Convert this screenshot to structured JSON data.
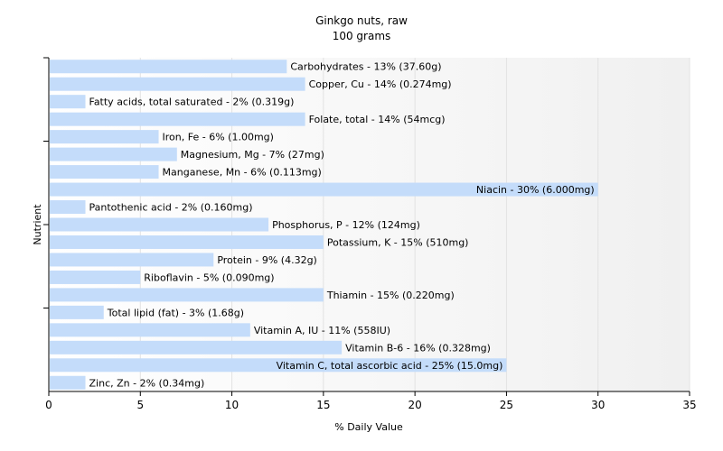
{
  "chart_data": {
    "type": "bar",
    "orientation": "horizontal",
    "title": "Ginkgo nuts, raw",
    "subtitle": "100 grams",
    "xlabel": "% Daily Value",
    "ylabel": "Nutrient",
    "xlim": [
      0,
      35
    ],
    "xticks": [
      0,
      5,
      10,
      15,
      20,
      25,
      30,
      35
    ],
    "grid": true,
    "bar_color": "#c4dcfa",
    "categories": [
      "Carbohydrates",
      "Copper, Cu",
      "Fatty acids, total saturated",
      "Folate, total",
      "Iron, Fe",
      "Magnesium, Mg",
      "Manganese, Mn",
      "Niacin",
      "Pantothenic acid",
      "Phosphorus, P",
      "Potassium, K",
      "Protein",
      "Riboflavin",
      "Thiamin",
      "Total lipid (fat)",
      "Vitamin A, IU",
      "Vitamin B-6",
      "Vitamin C, total ascorbic acid",
      "Zinc, Zn"
    ],
    "values": [
      13,
      14,
      2,
      14,
      6,
      7,
      6,
      30,
      2,
      12,
      15,
      9,
      5,
      15,
      3,
      11,
      16,
      25,
      2
    ],
    "labels": [
      "Carbohydrates - 13% (37.60g)",
      "Copper, Cu - 14% (0.274mg)",
      "Fatty acids, total saturated - 2% (0.319g)",
      "Folate, total - 14% (54mcg)",
      "Iron, Fe - 6% (1.00mg)",
      "Magnesium, Mg - 7% (27mg)",
      "Manganese, Mn - 6% (0.113mg)",
      "Niacin - 30% (6.000mg)",
      "Pantothenic acid - 2% (0.160mg)",
      "Phosphorus, P - 12% (124mg)",
      "Potassium, K - 15% (510mg)",
      "Protein - 9% (4.32g)",
      "Riboflavin - 5% (0.090mg)",
      "Thiamin - 15% (0.220mg)",
      "Total lipid (fat) - 3% (1.68g)",
      "Vitamin A, IU - 11% (558IU)",
      "Vitamin B-6 - 16% (0.328mg)",
      "Vitamin C, total ascorbic acid - 25% (15.0mg)",
      "Zinc, Zn - 2% (0.34mg)"
    ]
  }
}
